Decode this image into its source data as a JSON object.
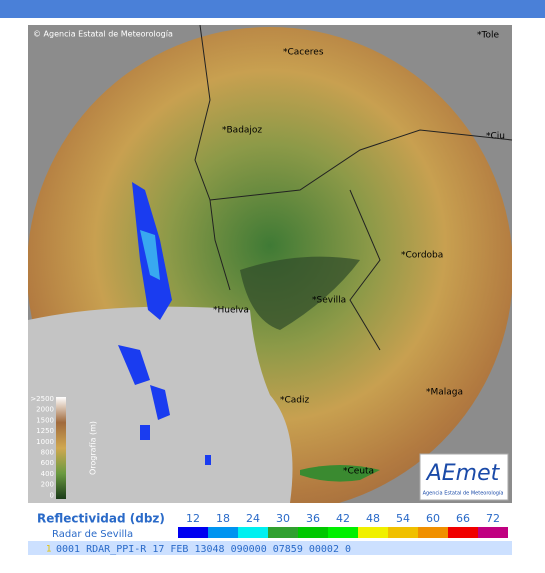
{
  "header": {
    "copyright": "© Agencia Estatal de Meteorología"
  },
  "cities": [
    {
      "label": "*Caceres"
    },
    {
      "label": "*Badajoz"
    },
    {
      "label": "*Tole"
    },
    {
      "label": "*Ciu"
    },
    {
      "label": "*Cordoba"
    },
    {
      "label": "*Sevilla"
    },
    {
      "label": "*Huelva"
    },
    {
      "label": "*Cadiz"
    },
    {
      "label": "*Malaga"
    },
    {
      "label": "*Ceuta"
    }
  ],
  "orography_legend": {
    "title": "Orografía (m)",
    "ticks": [
      ">2500",
      "2000",
      "1500",
      "1250",
      "1000",
      "800",
      "600",
      "400",
      "200",
      "0"
    ]
  },
  "logo": {
    "name": "AEmet",
    "subtitle": "Agencia Estatal de Meteorología"
  },
  "reflectivity_legend": {
    "title": "Reflectividad (dbz)",
    "radar": "Radar de Sevilla",
    "levels": [
      {
        "label": "12",
        "color": "#0000f0"
      },
      {
        "label": "18",
        "color": "#0094f0"
      },
      {
        "label": "24",
        "color": "#00f0f0"
      },
      {
        "label": "30",
        "color": "#30a030"
      },
      {
        "label": "36",
        "color": "#00c800"
      },
      {
        "label": "42",
        "color": "#00f000"
      },
      {
        "label": "48",
        "color": "#f0f000"
      },
      {
        "label": "54",
        "color": "#f0c000"
      },
      {
        "label": "60",
        "color": "#f09000"
      },
      {
        "label": "66",
        "color": "#f00000"
      },
      {
        "label": "72",
        "color": "#c00080"
      }
    ]
  },
  "status_bar": {
    "marker": "1",
    "text": "0001 RDAR_PPI-R  17 FEB 13048 090000 07859 00002 0"
  }
}
